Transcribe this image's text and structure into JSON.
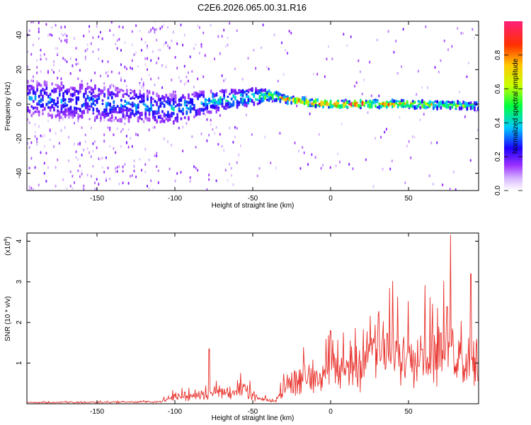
{
  "title": "C2E6.2026.065.00.31.R16",
  "chart_data": [
    {
      "type": "heatmap",
      "xlabel": "Height of straight line (km)",
      "ylabel": "Frequency (Hz)",
      "xlim": [
        -195,
        95
      ],
      "ylim": [
        -50,
        48
      ],
      "x_ticks": [
        -150,
        -100,
        -50,
        0,
        50
      ],
      "y_ticks": [
        -40,
        -20,
        0,
        20,
        40
      ],
      "colorbar": {
        "label": "Normalized spectral amplitude",
        "range": [
          0,
          1
        ],
        "ticks": [
          0.0,
          0.2,
          0.4,
          0.6,
          0.8
        ],
        "tick_labels": [
          "0.0",
          "0.2",
          "0.4",
          "0.6",
          "0.8"
        ]
      },
      "ridge": [
        {
          "x": -190,
          "f": 3,
          "spread": 10,
          "amp": 0.35
        },
        {
          "x": -150,
          "f": 1,
          "spread": 10,
          "amp": 0.35
        },
        {
          "x": -100,
          "f": -3,
          "spread": 8,
          "amp": 0.4
        },
        {
          "x": -75,
          "f": 2,
          "spread": 6,
          "amp": 0.45
        },
        {
          "x": -50,
          "f": 4,
          "spread": 5,
          "amp": 0.5
        },
        {
          "x": -40,
          "f": 5,
          "spread": 3,
          "amp": 0.65
        },
        {
          "x": -30,
          "f": 3,
          "spread": 2,
          "amp": 0.85
        },
        {
          "x": -15,
          "f": 1,
          "spread": 2,
          "amp": 0.9
        },
        {
          "x": 0,
          "f": 0,
          "spread": 2,
          "amp": 1.0
        },
        {
          "x": 20,
          "f": 0,
          "spread": 2,
          "amp": 0.95
        },
        {
          "x": 50,
          "f": 0,
          "spread": 2,
          "amp": 0.85
        },
        {
          "x": 95,
          "f": -1,
          "spread": 2,
          "amp": 0.6
        }
      ]
    },
    {
      "type": "line",
      "xlabel": "Height of straight line (km)",
      "ylabel": "SNR (10 * v/v)",
      "multiplier_label": "(x10",
      "multiplier_exponent": "4",
      "multiplier_close": ")",
      "xlim": [
        -195,
        95
      ],
      "ylim": [
        0,
        4.2
      ],
      "x_ticks": [
        -150,
        -100,
        -50,
        0,
        50
      ],
      "y_ticks": [
        1,
        2,
        3,
        4
      ],
      "color": "#e8302a",
      "envelope": [
        {
          "x": -195,
          "base": 0.03,
          "amp": 0.03
        },
        {
          "x": -110,
          "base": 0.05,
          "amp": 0.05
        },
        {
          "x": -100,
          "base": 0.15,
          "amp": 0.25
        },
        {
          "x": -80,
          "base": 0.2,
          "amp": 0.4
        },
        {
          "x": -70,
          "base": 0.25,
          "amp": 0.6
        },
        {
          "x": -55,
          "base": 0.3,
          "amp": 0.45
        },
        {
          "x": -45,
          "base": 0.1,
          "amp": 0.15
        },
        {
          "x": -35,
          "base": 0.05,
          "amp": 0.1
        },
        {
          "x": -30,
          "base": 0.4,
          "amp": 0.6
        },
        {
          "x": -15,
          "base": 0.7,
          "amp": 0.9
        },
        {
          "x": 0,
          "base": 0.8,
          "amp": 1.1
        },
        {
          "x": 10,
          "base": 0.9,
          "amp": 1.2
        },
        {
          "x": 25,
          "base": 1.2,
          "amp": 1.6
        },
        {
          "x": 40,
          "base": 1.3,
          "amp": 1.9
        },
        {
          "x": 60,
          "base": 1.2,
          "amp": 2.0
        },
        {
          "x": 80,
          "base": 1.1,
          "amp": 2.1
        },
        {
          "x": 95,
          "base": 1.0,
          "amp": 1.5
        }
      ],
      "spikes": [
        {
          "x": -78,
          "y": 1.35
        },
        {
          "x": 0,
          "y": 1.8
        },
        {
          "x": 77,
          "y": 4.15
        },
        {
          "x": 90,
          "y": 3.2
        }
      ]
    }
  ]
}
